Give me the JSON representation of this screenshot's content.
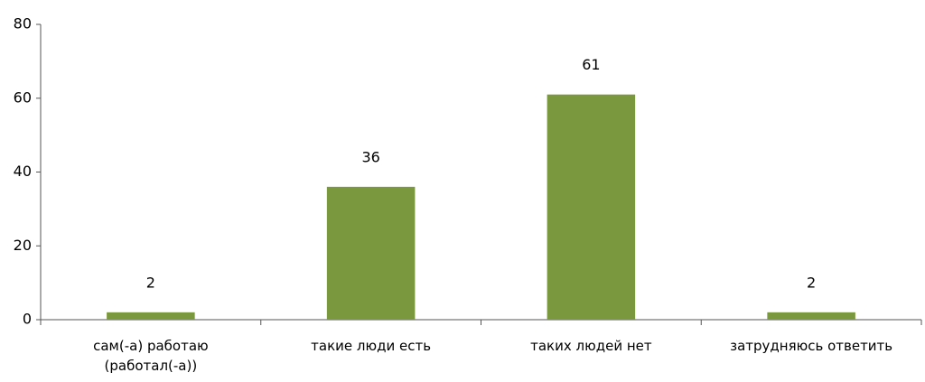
{
  "chart_data": {
    "type": "bar",
    "categories": [
      "сам(-а) работаю (работал(-а))",
      "такие люди есть",
      "таких людей нет",
      "затрудняюсь ответить"
    ],
    "values": [
      2,
      36,
      61,
      2
    ],
    "color": "#7a983d",
    "ylim": [
      0,
      80
    ],
    "yticks": [
      0,
      20,
      40,
      60,
      80
    ],
    "grid": false
  }
}
